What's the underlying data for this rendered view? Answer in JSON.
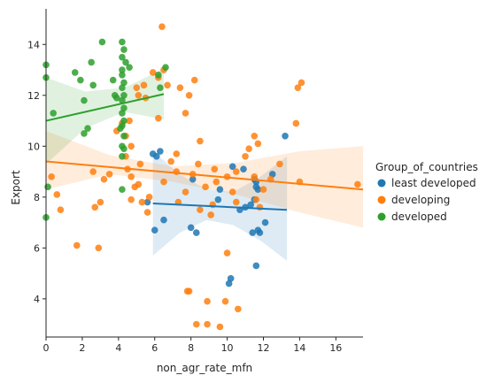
{
  "chart_data": {
    "type": "scatter",
    "xlabel": "non_agr_rate_mfn",
    "ylabel": "Export",
    "xlim": [
      0,
      17.5
    ],
    "ylim": [
      2.5,
      15.4
    ],
    "xticks": [
      "0",
      "2",
      "4",
      "6",
      "8",
      "10",
      "12",
      "14",
      "16"
    ],
    "yticks": [
      "4",
      "6",
      "8",
      "10",
      "12",
      "14"
    ],
    "grid": false,
    "legend": {
      "title": "Group_of_countries",
      "placement": "right"
    },
    "colors": {
      "least developed": "#1f77b4",
      "developing": "#ff7f0e",
      "developed": "#2ca02c"
    },
    "series": [
      {
        "name": "least developed",
        "color": "#1f77b4",
        "regression": {
          "x": [
            5.9,
            13.3
          ],
          "y": [
            7.75,
            7.5
          ]
        },
        "ci_upper": [
          9.8,
          8.9,
          8.3,
          8.2,
          8.8,
          9.6
        ],
        "ci_lower": [
          5.7,
          6.6,
          7.1,
          6.9,
          6.3,
          5.5
        ],
        "points": [
          [
            5.9,
            9.7
          ],
          [
            6.3,
            9.8
          ],
          [
            6.1,
            9.6
          ],
          [
            6.0,
            6.7
          ],
          [
            6.5,
            7.1
          ],
          [
            5.6,
            7.8
          ],
          [
            8.1,
            8.7
          ],
          [
            8.0,
            6.8
          ],
          [
            8.3,
            6.6
          ],
          [
            9.6,
            8.3
          ],
          [
            9.5,
            7.9
          ],
          [
            10.2,
            4.8
          ],
          [
            10.1,
            4.6
          ],
          [
            10.7,
            7.5
          ],
          [
            10.9,
            9.1
          ],
          [
            11.3,
            7.7
          ],
          [
            11.6,
            8.6
          ],
          [
            11.5,
            7.9
          ],
          [
            11.4,
            6.6
          ],
          [
            11.7,
            6.7
          ],
          [
            11.6,
            5.3
          ],
          [
            11.8,
            6.6
          ],
          [
            12.1,
            7.0
          ],
          [
            12.5,
            8.9
          ],
          [
            11.0,
            7.6
          ],
          [
            13.2,
            10.4
          ],
          [
            11.5,
            8.7
          ],
          [
            11.7,
            8.3
          ],
          [
            10.3,
            9.2
          ],
          [
            11.6,
            8.4
          ]
        ]
      },
      {
        "name": "developing",
        "color": "#ff7f0e",
        "regression": {
          "x": [
            0.0,
            17.5
          ],
          "y": [
            9.4,
            8.3
          ]
        },
        "ci_upper": [
          10.6,
          9.65,
          9.2,
          9.35,
          9.8,
          10.0
        ],
        "ci_lower": [
          8.3,
          8.9,
          8.6,
          8.1,
          7.4,
          6.8
        ],
        "points": [
          [
            0.3,
            8.8
          ],
          [
            0.6,
            8.1
          ],
          [
            0.8,
            7.5
          ],
          [
            1.7,
            6.1
          ],
          [
            2.9,
            6.0
          ],
          [
            2.7,
            7.6
          ],
          [
            2.6,
            9.0
          ],
          [
            3.0,
            7.8
          ],
          [
            3.5,
            8.9
          ],
          [
            3.9,
            10.6
          ],
          [
            4.2,
            10.9
          ],
          [
            4.4,
            10.4
          ],
          [
            4.6,
            11.0
          ],
          [
            4.7,
            10.0
          ],
          [
            4.4,
            9.6
          ],
          [
            4.5,
            9.1
          ],
          [
            4.9,
            8.4
          ],
          [
            4.7,
            8.8
          ],
          [
            5.1,
            8.5
          ],
          [
            5.3,
            7.8
          ],
          [
            5.2,
            9.3
          ],
          [
            5.6,
            7.4
          ],
          [
            5.0,
            12.3
          ],
          [
            5.1,
            12.0
          ],
          [
            5.4,
            12.4
          ],
          [
            5.5,
            11.9
          ],
          [
            5.9,
            12.9
          ],
          [
            6.2,
            12.7
          ],
          [
            6.4,
            14.7
          ],
          [
            6.5,
            13.0
          ],
          [
            6.2,
            11.1
          ],
          [
            6.7,
            12.4
          ],
          [
            7.4,
            12.3
          ],
          [
            7.7,
            11.3
          ],
          [
            7.9,
            12.0
          ],
          [
            8.2,
            12.6
          ],
          [
            6.5,
            8.6
          ],
          [
            7.2,
            9.0
          ],
          [
            7.3,
            7.8
          ],
          [
            7.7,
            8.2
          ],
          [
            8.1,
            8.9
          ],
          [
            8.4,
            9.3
          ],
          [
            8.5,
            10.2
          ],
          [
            7.8,
            4.3
          ],
          [
            7.9,
            4.3
          ],
          [
            8.5,
            7.5
          ],
          [
            8.9,
            3.9
          ],
          [
            9.1,
            7.3
          ],
          [
            9.3,
            9.1
          ],
          [
            8.3,
            3.0
          ],
          [
            8.9,
            3.0
          ],
          [
            9.6,
            2.9
          ],
          [
            10.0,
            5.8
          ],
          [
            9.9,
            3.9
          ],
          [
            10.6,
            3.6
          ],
          [
            10.0,
            8.8
          ],
          [
            10.3,
            8.2
          ],
          [
            10.5,
            7.8
          ],
          [
            11.0,
            9.6
          ],
          [
            11.2,
            9.9
          ],
          [
            11.5,
            10.4
          ],
          [
            11.7,
            10.1
          ],
          [
            11.5,
            8.8
          ],
          [
            11.8,
            7.6
          ],
          [
            12.0,
            8.3
          ],
          [
            11.6,
            7.9
          ],
          [
            13.9,
            12.3
          ],
          [
            14.1,
            12.5
          ],
          [
            13.8,
            10.9
          ],
          [
            14.0,
            8.6
          ],
          [
            17.2,
            8.5
          ],
          [
            10.5,
            9.0
          ],
          [
            12.4,
            8.7
          ],
          [
            12.9,
            9.3
          ],
          [
            9.4,
            8.6
          ],
          [
            8.8,
            8.4
          ],
          [
            7.2,
            9.7
          ],
          [
            6.9,
            9.4
          ],
          [
            4.7,
            7.9
          ],
          [
            3.2,
            8.7
          ],
          [
            5.7,
            8.0
          ],
          [
            9.2,
            7.7
          ]
        ]
      },
      {
        "name": "developed",
        "color": "#2ca02c",
        "regression": {
          "x": [
            0.0,
            6.5
          ],
          "y": [
            11.0,
            12.05
          ]
        },
        "ci_upper": [
          12.7,
          12.15,
          12.3,
          13.05
        ],
        "ci_lower": [
          9.3,
          10.7,
          11.35,
          11.05
        ],
        "points": [
          [
            0.0,
            13.2
          ],
          [
            0.0,
            12.7
          ],
          [
            0.0,
            7.2
          ],
          [
            0.1,
            8.4
          ],
          [
            0.4,
            11.3
          ],
          [
            1.6,
            12.9
          ],
          [
            1.9,
            12.6
          ],
          [
            2.1,
            11.8
          ],
          [
            2.3,
            10.7
          ],
          [
            2.1,
            10.5
          ],
          [
            2.5,
            13.3
          ],
          [
            2.6,
            12.4
          ],
          [
            3.1,
            14.1
          ],
          [
            3.7,
            12.6
          ],
          [
            3.8,
            12.0
          ],
          [
            4.2,
            14.1
          ],
          [
            4.3,
            13.8
          ],
          [
            4.2,
            13.5
          ],
          [
            4.2,
            13.0
          ],
          [
            4.2,
            12.8
          ],
          [
            4.3,
            12.5
          ],
          [
            4.2,
            12.3
          ],
          [
            4.3,
            12.0
          ],
          [
            4.2,
            11.8
          ],
          [
            4.3,
            11.5
          ],
          [
            4.2,
            11.3
          ],
          [
            4.3,
            11.0
          ],
          [
            4.2,
            10.8
          ],
          [
            4.3,
            10.4
          ],
          [
            4.2,
            10.0
          ],
          [
            4.3,
            9.9
          ],
          [
            4.2,
            9.6
          ],
          [
            4.2,
            8.3
          ],
          [
            4.4,
            13.3
          ],
          [
            6.2,
            12.8
          ],
          [
            6.6,
            13.1
          ],
          [
            6.3,
            12.3
          ],
          [
            4.6,
            13.1
          ],
          [
            3.9,
            11.9
          ],
          [
            4.1,
            10.7
          ]
        ]
      }
    ]
  }
}
